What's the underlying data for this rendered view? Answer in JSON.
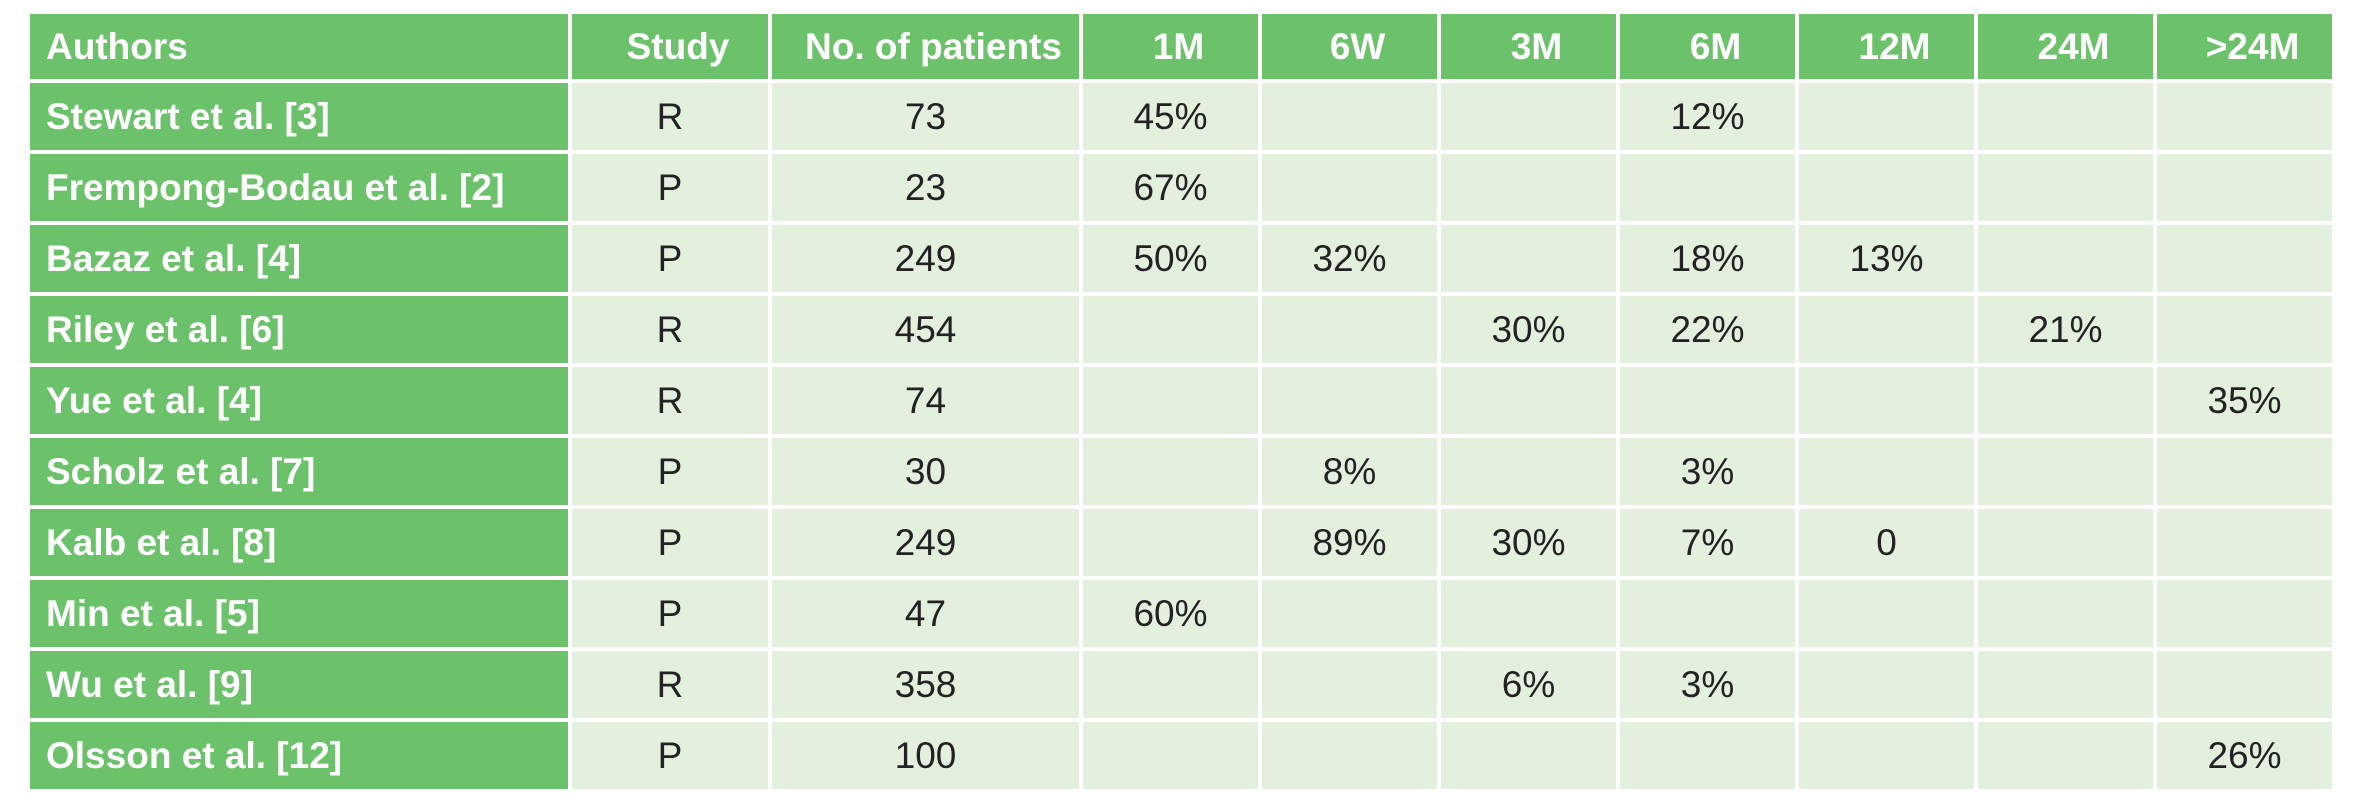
{
  "table": {
    "headers": [
      "Authors",
      "Study",
      "No. of patients",
      "1M",
      "6W",
      "3M",
      "6M",
      "12M",
      "24M",
      ">24M"
    ],
    "rows": [
      [
        "Stewart et al. [3]",
        "R",
        "73",
        "45%",
        "",
        "",
        "12%",
        "",
        "",
        ""
      ],
      [
        "Frempong-Bodau et al. [2]",
        "P",
        "23",
        "67%",
        "",
        "",
        "",
        "",
        "",
        ""
      ],
      [
        "Bazaz et al. [4]",
        "P",
        "249",
        "50%",
        "32%",
        "",
        "18%",
        "13%",
        "",
        ""
      ],
      [
        "Riley et al. [6]",
        "R",
        "454",
        "",
        "",
        "30%",
        "22%",
        "",
        "21%",
        ""
      ],
      [
        "Yue et al. [4]",
        "R",
        "74",
        "",
        "",
        "",
        "",
        "",
        "",
        "35%"
      ],
      [
        "Scholz et al. [7]",
        "P",
        "30",
        "",
        "8%",
        "",
        "3%",
        "",
        "",
        ""
      ],
      [
        "Kalb et al. [8]",
        "P",
        "249",
        "",
        "89%",
        "30%",
        "7%",
        "0",
        "",
        ""
      ],
      [
        "Min et al. [5]",
        "P",
        "47",
        "60%",
        "",
        "",
        "",
        "",
        "",
        ""
      ],
      [
        "Wu et al. [9]",
        "R",
        "358",
        "",
        "",
        "6%",
        "3%",
        "",
        "",
        ""
      ],
      [
        "Olsson et al. [12]",
        "P",
        "100",
        "",
        "",
        "",
        "",
        "",
        "",
        "26%"
      ]
    ]
  }
}
